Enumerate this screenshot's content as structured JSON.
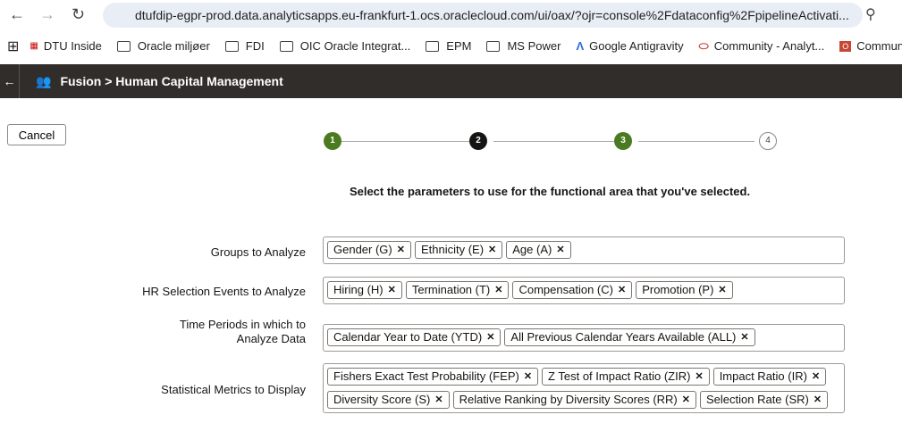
{
  "browser": {
    "url": "dtufdip-egpr-prod.data.analyticsapps.eu-frankfurt-1.ocs.oraclecloud.com/ui/oax/?ojr=console%2Fdataconfig%2FpipelineActivati...",
    "bookmarks": [
      "DTU Inside",
      "Oracle miljøer",
      "FDI",
      "OIC Oracle Integrat...",
      "EPM",
      "MS Power",
      "Google Antigravity",
      "Community - Analyt...",
      "Communit"
    ]
  },
  "header": {
    "title": "Fusion > Human Capital Management"
  },
  "cancel_label": "Cancel",
  "steps": [
    {
      "n": "1",
      "state": "complete"
    },
    {
      "n": "2",
      "state": "current"
    },
    {
      "n": "3",
      "state": "complete"
    },
    {
      "n": "4",
      "state": "pending"
    }
  ],
  "colors": {
    "complete": "#4b7a20",
    "current": "#161513",
    "header": "#312d2a"
  },
  "instruction": "Select the parameters to use for the functional area that you've selected.",
  "fields": [
    {
      "label": "Groups to Analyze",
      "chips": [
        "Gender (G)",
        "Ethnicity (E)",
        "Age (A)"
      ]
    },
    {
      "label": "HR Selection Events to Analyze",
      "chips": [
        "Hiring (H)",
        "Termination (T)",
        "Compensation (C)",
        "Promotion (P)"
      ]
    },
    {
      "label": "Time Periods in which to Analyze Data",
      "chips": [
        "Calendar Year to Date (YTD)",
        "All Previous Calendar Years Available (ALL)"
      ]
    },
    {
      "label": "Statistical Metrics to Display",
      "chips": [
        "Fishers Exact Test Probability (FEP)",
        "Z Test of Impact Ratio (ZIR)",
        "Impact Ratio (IR)",
        "Diversity Score (S)",
        "Relative Ranking by Diversity Scores (RR)",
        "Selection Rate (SR)"
      ]
    }
  ]
}
